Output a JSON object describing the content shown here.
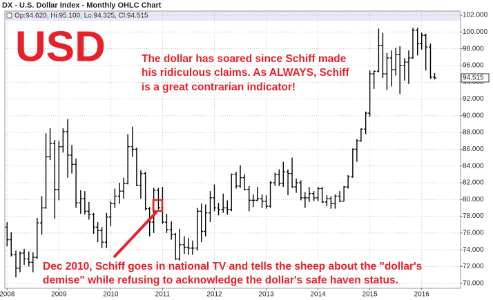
{
  "chart_data": {
    "type": "ohlc",
    "title": "DX - U.S. Dollar Index - Monthly OHLC Chart",
    "header": "Op:94.620, Hi:95.100, Lo:94.325, Cl:94.515",
    "last_label": "94.515",
    "big_label": "USD",
    "annotations": [
      [
        "The dollar has soared since Schiff made",
        "his ridiculous claims. As ALWAYS, Schiff",
        "is a great contrarian indicator!"
      ],
      [
        "Dec 2010, Schiff goes in national TV and tells the sheep about the \"dollar's",
        "demise\" while refusing to acknowledge the dollar's safe haven status."
      ]
    ],
    "color": "#000000",
    "annotation_color": "#e8202a",
    "grid": true,
    "xlim": [
      2007.97,
      2016.75
    ],
    "xticks": [
      2008,
      2009,
      2010,
      2011,
      2012,
      2013,
      2014,
      2015,
      2016
    ],
    "ylim": [
      69.4,
      102.5
    ],
    "yticks": [
      {
        "value": 70,
        "label": "70.000"
      },
      {
        "value": 72,
        "label": "72.000"
      },
      {
        "value": 74,
        "label": "74.000"
      },
      {
        "value": 76,
        "label": "76.000"
      },
      {
        "value": 78,
        "label": "78.000"
      },
      {
        "value": 80,
        "label": "80.000"
      },
      {
        "value": 82,
        "label": "82.000"
      },
      {
        "value": 84,
        "label": "84.000"
      },
      {
        "value": 86,
        "label": "86.000"
      },
      {
        "value": 88,
        "label": "88.000"
      },
      {
        "value": 90,
        "label": "90.000"
      },
      {
        "value": 92,
        "label": "92.000"
      },
      {
        "value": 94,
        "label": "94.000"
      },
      {
        "value": 96,
        "label": "96.000"
      },
      {
        "value": 98,
        "label": "98.000"
      },
      {
        "value": 100,
        "label": "100.000"
      },
      {
        "value": 102,
        "label": "102.000"
      }
    ],
    "x": [
      2008.0,
      2008.08,
      2008.17,
      2008.25,
      2008.33,
      2008.42,
      2008.5,
      2008.58,
      2008.67,
      2008.75,
      2008.83,
      2008.92,
      2009.0,
      2009.08,
      2009.17,
      2009.25,
      2009.33,
      2009.42,
      2009.5,
      2009.58,
      2009.67,
      2009.75,
      2009.83,
      2009.92,
      2010.0,
      2010.08,
      2010.17,
      2010.25,
      2010.33,
      2010.42,
      2010.5,
      2010.58,
      2010.67,
      2010.75,
      2010.83,
      2010.92,
      2011.0,
      2011.08,
      2011.17,
      2011.25,
      2011.33,
      2011.42,
      2011.5,
      2011.58,
      2011.67,
      2011.75,
      2011.83,
      2011.92,
      2012.0,
      2012.08,
      2012.17,
      2012.25,
      2012.33,
      2012.42,
      2012.5,
      2012.58,
      2012.67,
      2012.75,
      2012.83,
      2012.92,
      2013.0,
      2013.08,
      2013.17,
      2013.25,
      2013.33,
      2013.42,
      2013.5,
      2013.58,
      2013.67,
      2013.75,
      2013.83,
      2013.92,
      2014.0,
      2014.08,
      2014.17,
      2014.25,
      2014.33,
      2014.42,
      2014.5,
      2014.58,
      2014.67,
      2014.75,
      2014.83,
      2014.92,
      2015.0,
      2015.08,
      2015.17,
      2015.25,
      2015.33,
      2015.42,
      2015.5,
      2015.58,
      2015.67,
      2015.75,
      2015.83,
      2015.92,
      2016.0,
      2016.08,
      2016.17,
      2016.25
    ],
    "open": [
      76.7,
      75.2,
      73.4,
      71.8,
      73.6,
      72.9,
      72.5,
      73.1,
      77.2,
      79.0,
      85.1,
      86.7,
      81.2,
      86.3,
      88.1,
      85.3,
      84.2,
      79.6,
      80.1,
      78.6,
      78.2,
      76.7,
      76.3,
      74.9,
      77.9,
      79.5,
      80.4,
      81.0,
      81.9,
      86.3,
      86.0,
      81.7,
      83.1,
      78.9,
      77.3,
      81.1,
      79.0,
      77.3,
      76.4,
      75.8,
      72.9,
      74.6,
      74.3,
      74.2,
      74.2,
      78.6,
      76.2,
      78.4,
      80.2,
      79.0,
      78.8,
      79.0,
      78.8,
      83.0,
      81.6,
      82.6,
      81.2,
      79.9,
      79.9,
      80.1,
      79.8,
      79.2,
      82.0,
      83.0,
      81.9,
      83.3,
      83.1,
      81.5,
      82.0,
      80.2,
      80.2,
      80.7,
      80.2,
      81.3,
      79.7,
      80.1,
      79.5,
      80.4,
      79.8,
      81.5,
      82.7,
      86.0,
      87.0,
      88.4,
      90.3,
      95.0,
      95.3,
      98.4,
      95.0,
      96.9,
      95.5,
      97.3,
      96.0,
      96.4,
      96.9,
      100.2,
      98.6,
      99.6,
      98.2,
      94.62
    ],
    "high": [
      77.3,
      76.1,
      73.9,
      73.8,
      74.1,
      73.8,
      73.7,
      77.8,
      80.4,
      87.9,
      88.5,
      87.1,
      87.0,
      88.5,
      89.6,
      86.5,
      84.9,
      81.1,
      81.0,
      79.7,
      78.4,
      77.3,
      76.7,
      78.4,
      79.8,
      81.3,
      82.0,
      82.6,
      87.8,
      88.7,
      86.2,
      83.5,
      83.3,
      79.1,
      81.4,
      81.4,
      81.5,
      78.3,
      77.4,
      76.0,
      76.5,
      75.6,
      75.4,
      75.1,
      79.0,
      79.5,
      79.4,
      81.0,
      81.8,
      79.6,
      80.7,
      79.9,
      83.1,
      83.3,
      84.1,
      83.0,
      81.6,
      80.6,
      81.5,
      80.6,
      80.5,
      82.2,
      83.2,
      83.6,
      84.5,
      83.6,
      85.0,
      82.5,
      82.3,
      80.9,
      81.5,
      81.0,
      81.5,
      81.5,
      80.5,
      80.4,
      80.6,
      81.0,
      81.6,
      82.9,
      86.1,
      87.2,
      88.5,
      90.5,
      95.4,
      95.4,
      100.4,
      99.9,
      97.5,
      97.8,
      98.1,
      98.3,
      96.9,
      97.8,
      100.5,
      100.5,
      99.9,
      99.8,
      98.6,
      95.1
    ],
    "low": [
      74.4,
      73.2,
      70.7,
      71.3,
      72.2,
      72.0,
      71.3,
      72.9,
      75.8,
      78.9,
      84.7,
      77.7,
      79.9,
      85.6,
      82.6,
      83.1,
      79.0,
      78.3,
      78.2,
      77.6,
      75.9,
      74.9,
      74.2,
      74.2,
      76.8,
      79.0,
      79.5,
      80.1,
      81.8,
      85.1,
      81.6,
      80.1,
      78.7,
      75.6,
      76.0,
      78.8,
      77.1,
      76.0,
      75.2,
      72.8,
      72.7,
      73.5,
      73.4,
      73.4,
      73.9,
      74.9,
      75.6,
      77.3,
      78.6,
      78.1,
      78.4,
      78.2,
      78.6,
      81.3,
      81.4,
      81.1,
      78.6,
      79.1,
      79.8,
      79.0,
      78.9,
      79.0,
      81.6,
      81.6,
      81.5,
      80.5,
      81.4,
      80.8,
      79.9,
      79.0,
      79.7,
      79.8,
      79.8,
      79.6,
      79.2,
      78.9,
      78.9,
      79.7,
      79.8,
      81.3,
      82.6,
      84.5,
      86.9,
      87.8,
      89.9,
      93.2,
      95.2,
      94.5,
      93.1,
      93.5,
      94.8,
      92.6,
      94.2,
      93.8,
      96.8,
      97.2,
      97.9,
      95.4,
      94.4,
      94.325
    ],
    "close": [
      75.2,
      73.4,
      71.8,
      73.6,
      72.9,
      72.5,
      73.1,
      77.2,
      79.0,
      85.1,
      86.7,
      81.2,
      86.3,
      88.1,
      85.3,
      84.2,
      79.6,
      80.1,
      78.6,
      78.2,
      76.7,
      76.3,
      74.9,
      77.9,
      79.5,
      80.4,
      81.0,
      81.9,
      86.3,
      86.0,
      81.7,
      83.1,
      78.9,
      77.3,
      81.1,
      79.0,
      77.3,
      76.4,
      75.8,
      72.9,
      74.6,
      74.3,
      74.2,
      74.2,
      78.6,
      76.2,
      78.4,
      80.2,
      79.0,
      78.8,
      79.0,
      78.8,
      83.0,
      81.6,
      82.6,
      81.2,
      79.9,
      79.9,
      80.1,
      79.8,
      79.2,
      82.0,
      83.0,
      81.9,
      83.3,
      83.1,
      81.5,
      82.0,
      80.2,
      80.2,
      80.7,
      80.2,
      81.3,
      79.7,
      80.1,
      79.5,
      80.4,
      79.8,
      81.5,
      82.7,
      86.0,
      87.0,
      88.4,
      90.3,
      95.0,
      95.3,
      98.4,
      95.0,
      96.9,
      95.5,
      97.3,
      96.0,
      96.4,
      96.9,
      100.2,
      98.6,
      99.6,
      98.2,
      94.6,
      94.515
    ]
  }
}
